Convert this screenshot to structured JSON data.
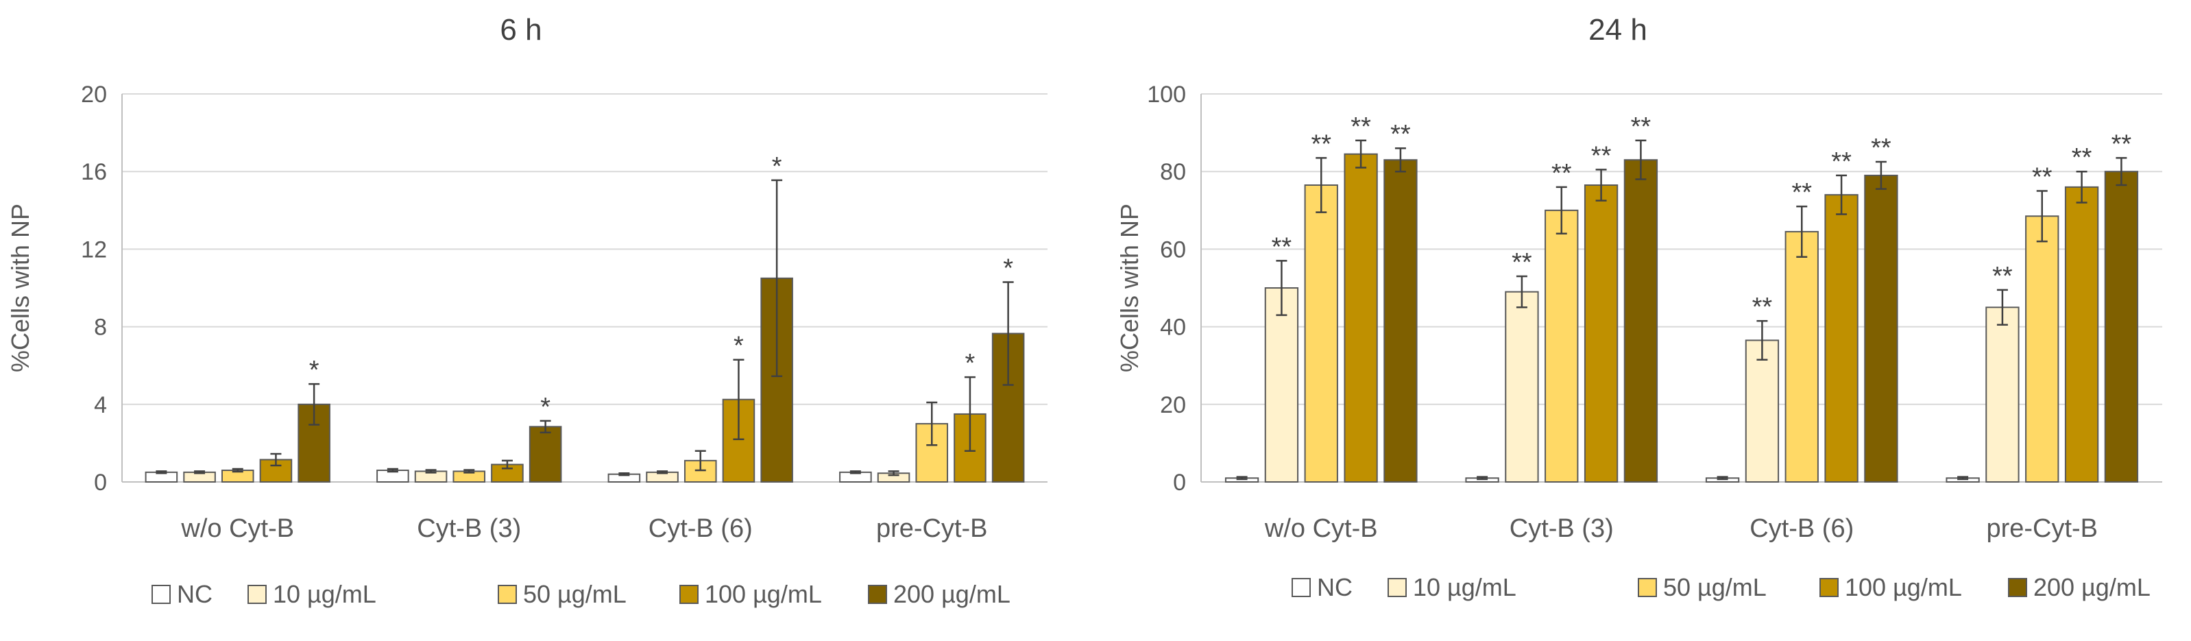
{
  "chart_data": [
    {
      "type": "bar",
      "title": "6 h",
      "xlabel": "",
      "ylabel": "%Cells with NP",
      "ylim": [
        0,
        20
      ],
      "yticks": [
        0,
        4,
        8,
        12,
        16,
        20
      ],
      "grid": true,
      "legend_position": "bottom",
      "categories": [
        "w/o Cyt-B",
        "Cyt-B (3)",
        "Cyt-B (6)",
        "pre-Cyt-B"
      ],
      "series": [
        {
          "name": "NC",
          "color": "#ffffff",
          "values": [
            0.5,
            0.6,
            0.4,
            0.5
          ],
          "errors": [
            0.05,
            0.07,
            0.05,
            0.05
          ],
          "significance": [
            "",
            "",
            "",
            ""
          ]
        },
        {
          "name": "10 µg/mL",
          "color": "#fff2cc",
          "values": [
            0.5,
            0.55,
            0.5,
            0.45
          ],
          "errors": [
            0.05,
            0.07,
            0.05,
            0.1
          ],
          "significance": [
            "",
            "",
            "",
            ""
          ]
        },
        {
          "name": "50 µg/mL",
          "color": "#ffd966",
          "values": [
            0.6,
            0.55,
            1.1,
            3.0
          ],
          "errors": [
            0.07,
            0.07,
            0.5,
            1.1
          ],
          "significance": [
            "",
            "",
            "",
            ""
          ]
        },
        {
          "name": "100 µg/mL",
          "color": "#bf9000",
          "values": [
            1.15,
            0.9,
            4.25,
            3.5
          ],
          "errors": [
            0.3,
            0.2,
            2.05,
            1.9
          ],
          "significance": [
            "",
            "",
            "*",
            "*"
          ]
        },
        {
          "name": "200 µg/mL",
          "color": "#7f6000",
          "values": [
            4.0,
            2.85,
            10.5,
            7.65
          ],
          "errors": [
            1.05,
            0.3,
            5.05,
            2.65
          ],
          "significance": [
            "*",
            "*",
            "*",
            "*"
          ]
        }
      ]
    },
    {
      "type": "bar",
      "title": "24 h",
      "xlabel": "",
      "ylabel": "%Cells with NP",
      "ylim": [
        0,
        100
      ],
      "yticks": [
        0,
        20,
        40,
        60,
        80,
        100
      ],
      "grid": true,
      "legend_position": "bottom",
      "categories": [
        "w/o Cyt-B",
        "Cyt-B (3)",
        "Cyt-B (6)",
        "pre-Cyt-B"
      ],
      "series": [
        {
          "name": "NC",
          "color": "#ffffff",
          "values": [
            1,
            1,
            1,
            1
          ],
          "errors": [
            0.3,
            0.3,
            0.3,
            0.3
          ],
          "significance": [
            "",
            "",
            "",
            ""
          ]
        },
        {
          "name": "10 µg/mL",
          "color": "#fff2cc",
          "values": [
            50,
            49,
            36.5,
            45
          ],
          "errors": [
            7,
            4,
            5,
            4.5
          ],
          "significance": [
            "**",
            "**",
            "**",
            "**"
          ]
        },
        {
          "name": "50 µg/mL",
          "color": "#ffd966",
          "values": [
            76.5,
            70,
            64.5,
            68.5
          ],
          "errors": [
            7,
            6,
            6.5,
            6.5
          ],
          "significance": [
            "**",
            "**",
            "**",
            "**"
          ]
        },
        {
          "name": "100 µg/mL",
          "color": "#bf9000",
          "values": [
            84.5,
            76.5,
            74,
            76
          ],
          "errors": [
            3.5,
            4,
            5,
            4
          ],
          "significance": [
            "**",
            "**",
            "**",
            "**"
          ]
        },
        {
          "name": "200 µg/mL",
          "color": "#7f6000",
          "values": [
            83,
            83,
            79,
            80
          ],
          "errors": [
            3,
            5,
            3.5,
            3.5
          ],
          "significance": [
            "**",
            "**",
            "**",
            "**"
          ]
        }
      ]
    }
  ]
}
